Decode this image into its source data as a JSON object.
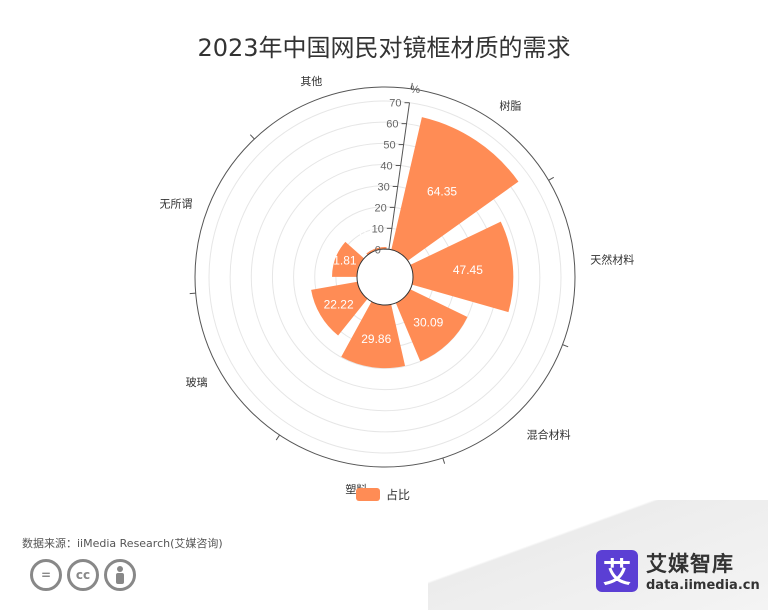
{
  "title": "2023年中国网民对镜框材质的需求",
  "legend_label": "占比",
  "source": "数据来源：iiMedia Research(艾媒咨询)",
  "brand": {
    "name": "艾媒智库",
    "url": "data.iimedia.cn",
    "logo_char": "艾"
  },
  "license_icons": [
    "equals-icon",
    "cc-icon",
    "person-icon"
  ],
  "colors": {
    "bar": "#ff8c55",
    "axis": "#555555",
    "grid": "#e6e6e6",
    "logo": "#5b3fd4"
  },
  "chart_data": {
    "type": "bar",
    "layout": "polar",
    "title": "2023年中国网民对镜框材质的需求",
    "categories": [
      "树脂",
      "天然材料",
      "混合材料",
      "塑料",
      "玻璃",
      "无所谓",
      "其他"
    ],
    "series": [
      {
        "name": "占比",
        "values": [
          64.35,
          47.45,
          30.09,
          29.86,
          22.22,
          11.81,
          0.93
        ]
      }
    ],
    "radial_axis": {
      "unit": "%",
      "range": [
        0,
        70
      ],
      "ticks": [
        0,
        10,
        20,
        30,
        40,
        50,
        60,
        70
      ]
    },
    "legend": "bottom",
    "grid": true
  }
}
